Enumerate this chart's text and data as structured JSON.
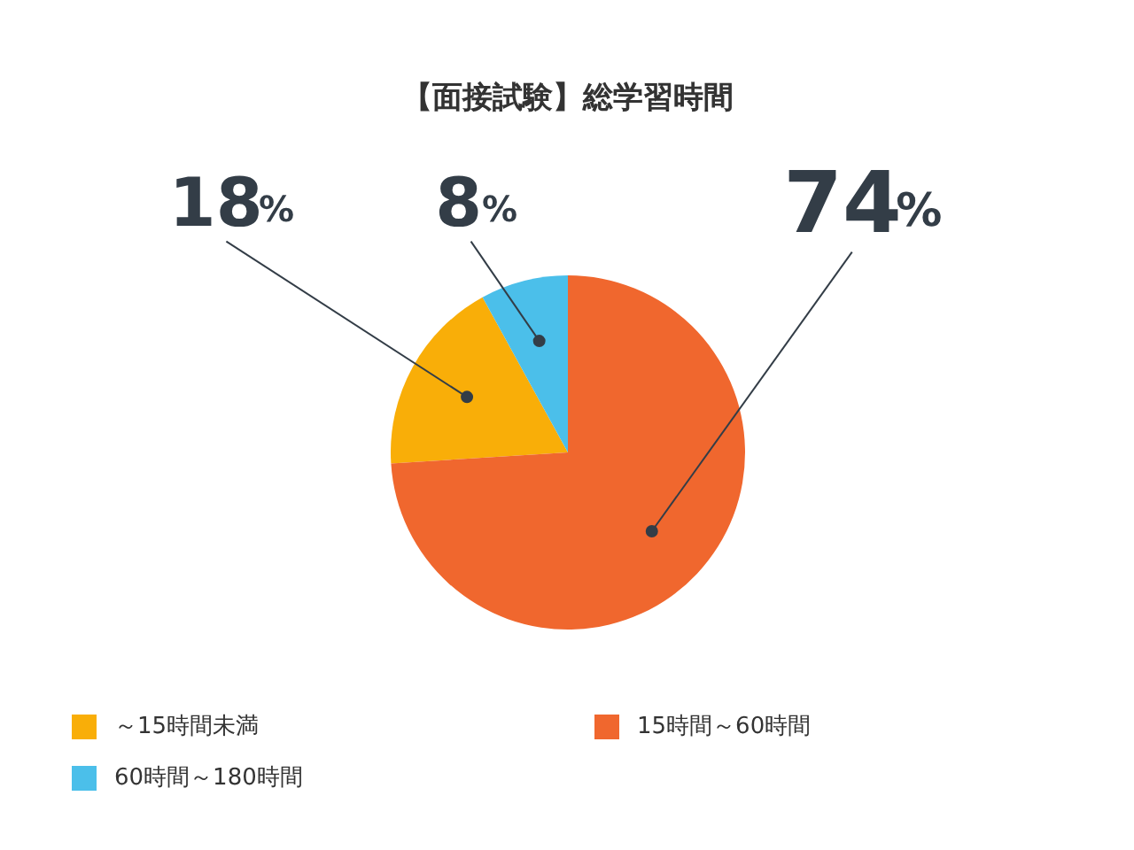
{
  "chart_data": {
    "type": "pie",
    "title": "【面接試験】総学習時間",
    "categories": [
      "～15時間未満",
      "15時間～60時間",
      "60時間～180時間"
    ],
    "values": [
      18,
      74,
      8
    ],
    "colors": [
      "#f9ae08",
      "#f0672e",
      "#4bbfea"
    ],
    "value_labels": [
      "18%",
      "74%",
      "8%"
    ],
    "legend": "bottom"
  }
}
